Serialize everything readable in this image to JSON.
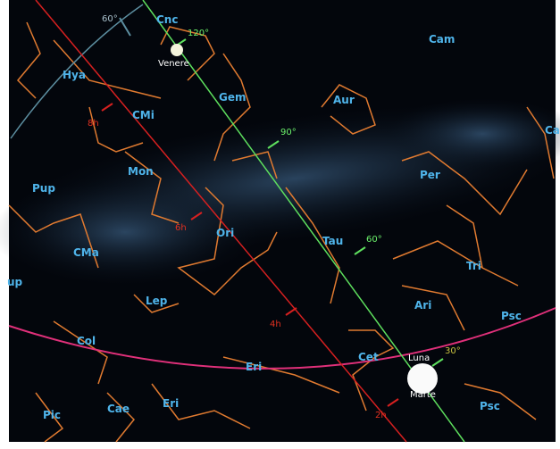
{
  "constellations": [
    "Cnc",
    "Cam",
    "Hya",
    "Gem",
    "Aur",
    "CMi",
    "Ca",
    "Mon",
    "Per",
    "Pup",
    "Ori",
    "Tau",
    "CMa",
    "Tri",
    "up",
    "Lep",
    "Ari",
    "Psc",
    "Col",
    "Cet",
    "Eri",
    "Eri",
    "Cae",
    "Pic",
    "Psc"
  ],
  "bodies": [
    "Venere",
    "Luna",
    "Marte"
  ],
  "altitude_ticks": [
    "60°",
    "120°",
    "90°",
    "60°",
    "30°"
  ],
  "hour_ticks": [
    "8h",
    "6h",
    "4h",
    "2h"
  ]
}
